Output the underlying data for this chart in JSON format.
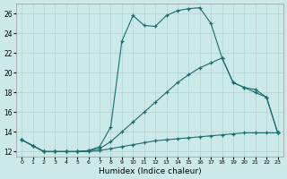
{
  "xlabel": "Humidex (Indice chaleur)",
  "xlim": [
    -0.5,
    23.5
  ],
  "ylim": [
    11.5,
    27
  ],
  "yticks": [
    12,
    14,
    16,
    18,
    20,
    22,
    24,
    26
  ],
  "xticks": [
    0,
    1,
    2,
    3,
    4,
    5,
    6,
    7,
    8,
    9,
    10,
    11,
    12,
    13,
    14,
    15,
    16,
    17,
    18,
    19,
    20,
    21,
    22,
    23
  ],
  "bg_color": "#cce9e9",
  "grid_color": "#aad4d4",
  "line_color": "#1a6b6b",
  "curve1_x": [
    0,
    1,
    2,
    3,
    4,
    5,
    6,
    7,
    8,
    9,
    10,
    11,
    12,
    13,
    14,
    15,
    16,
    17,
    18,
    19,
    20,
    21,
    22,
    23
  ],
  "curve1_y": [
    13.2,
    12.6,
    12.0,
    12.0,
    12.0,
    12.0,
    12.1,
    12.5,
    14.5,
    23.2,
    25.8,
    24.8,
    24.7,
    25.8,
    26.3,
    26.5,
    26.6,
    25.0,
    21.5,
    19.0,
    18.5,
    18.3,
    17.5,
    13.9
  ],
  "curve2_x": [
    0,
    1,
    2,
    3,
    4,
    5,
    6,
    7,
    8,
    9,
    10,
    11,
    12,
    13,
    14,
    15,
    16,
    17,
    18,
    19,
    20,
    21,
    22,
    23
  ],
  "curve2_y": [
    13.2,
    12.6,
    12.0,
    12.0,
    12.0,
    12.0,
    12.1,
    12.3,
    13.0,
    14.0,
    15.0,
    16.0,
    17.0,
    18.0,
    19.0,
    19.8,
    20.5,
    21.0,
    21.5,
    19.0,
    18.5,
    18.0,
    17.5,
    13.9
  ],
  "curve3_x": [
    0,
    1,
    2,
    3,
    4,
    5,
    6,
    7,
    8,
    9,
    10,
    11,
    12,
    13,
    14,
    15,
    16,
    17,
    18,
    19,
    20,
    21,
    22,
    23
  ],
  "curve3_y": [
    13.2,
    12.6,
    12.0,
    12.0,
    12.0,
    12.0,
    12.0,
    12.1,
    12.3,
    12.5,
    12.7,
    12.9,
    13.1,
    13.2,
    13.3,
    13.4,
    13.5,
    13.6,
    13.7,
    13.8,
    13.9,
    13.9,
    13.9,
    13.9
  ]
}
